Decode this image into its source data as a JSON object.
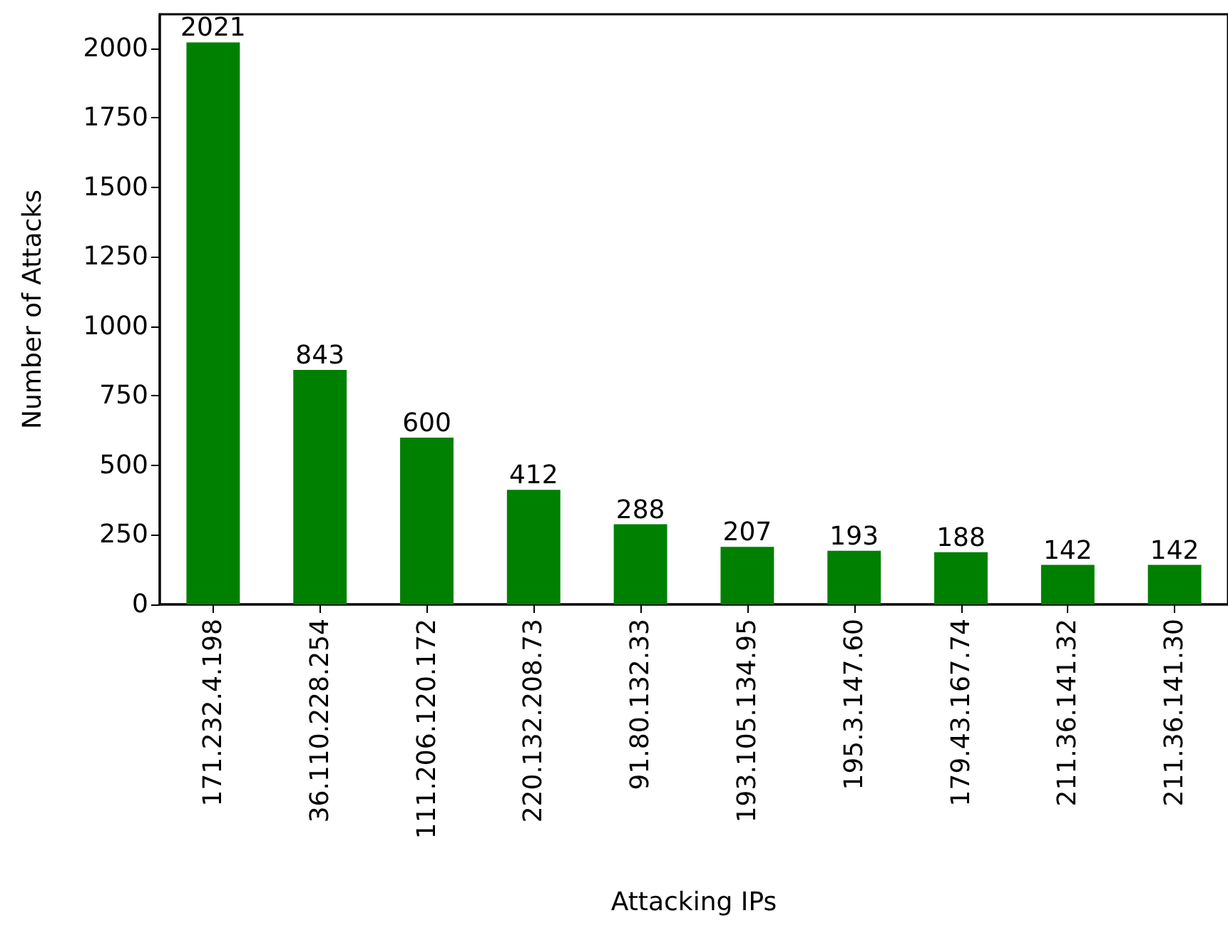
{
  "chart_data": {
    "type": "bar",
    "xlabel": "Attacking IPs",
    "ylabel": "Number of Attacks",
    "categories": [
      "171.232.4.198",
      "36.110.228.254",
      "111.206.120.172",
      "220.132.208.73",
      "91.80.132.33",
      "193.105.134.95",
      "195.3.147.60",
      "179.43.167.74",
      "211.36.141.32",
      "211.36.141.30"
    ],
    "values": [
      2021,
      843,
      600,
      412,
      288,
      207,
      193,
      188,
      142,
      142
    ],
    "color": "#008000",
    "ylim": [
      0,
      2122
    ],
    "yticks": [
      0,
      250,
      500,
      750,
      1000,
      1250,
      1500,
      1750,
      2000
    ],
    "grid": false,
    "data_labels": true
  }
}
